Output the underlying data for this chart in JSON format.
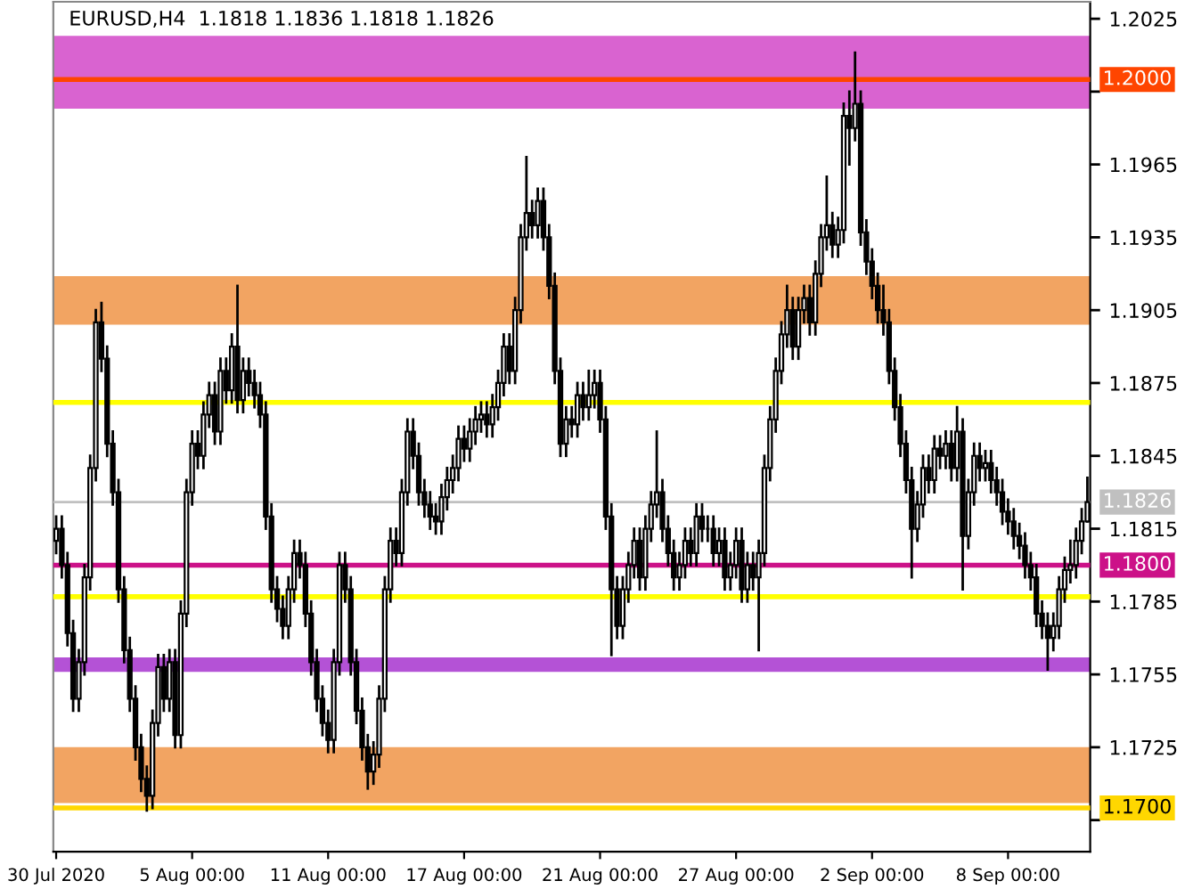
{
  "chart_data": {
    "type": "candlestick",
    "title": "EURUSD,H4  1.1818 1.1836 1.1818 1.1826",
    "categories": [
      "30 Jul 2020",
      null,
      null,
      null,
      null,
      null,
      null,
      null,
      null,
      null,
      null,
      null,
      null,
      null,
      null,
      null,
      null,
      null,
      null,
      null,
      null,
      null,
      null,
      null,
      "5 Aug 00:00",
      null,
      null,
      null,
      null,
      null,
      null,
      null,
      null,
      null,
      null,
      null,
      null,
      null,
      null,
      null,
      null,
      null,
      null,
      null,
      null,
      null,
      null,
      null,
      "11 Aug 00:00",
      null,
      null,
      null,
      null,
      null,
      null,
      null,
      null,
      null,
      null,
      null,
      null,
      null,
      null,
      null,
      null,
      null,
      null,
      null,
      null,
      null,
      null,
      null,
      "17 Aug 00:00",
      null,
      null,
      null,
      null,
      null,
      null,
      null,
      null,
      null,
      null,
      null,
      null,
      null,
      null,
      null,
      null,
      null,
      null,
      null,
      null,
      null,
      null,
      null,
      "21 Aug 00:00",
      null,
      null,
      null,
      null,
      null,
      null,
      null,
      null,
      null,
      null,
      null,
      null,
      null,
      null,
      null,
      null,
      null,
      null,
      null,
      null,
      null,
      null,
      null,
      "27 Aug 00:00",
      null,
      null,
      null,
      null,
      null,
      null,
      null,
      null,
      null,
      null,
      null,
      null,
      null,
      null,
      null,
      null,
      null,
      null,
      null,
      null,
      null,
      null,
      null,
      "2 Sep 00:00",
      null,
      null,
      null,
      null,
      null,
      null,
      null,
      null,
      null,
      null,
      null,
      null,
      null,
      null,
      null,
      null,
      null,
      null,
      null,
      null,
      null,
      null,
      null,
      "8 Sep 00:00",
      null,
      null,
      null,
      null,
      null,
      null,
      null,
      null,
      null,
      null,
      null,
      null,
      null,
      null
    ],
    "ohlc": [
      [
        1.181,
        1.182,
        1.1805,
        1.1815
      ],
      [
        1.1815,
        1.182,
        1.1795,
        1.18
      ],
      [
        1.18,
        1.1805,
        1.1767,
        1.1772
      ],
      [
        1.1772,
        1.1777,
        1.174,
        1.1745
      ],
      [
        1.1745,
        1.1765,
        1.174,
        1.176
      ],
      [
        1.176,
        1.18,
        1.1755,
        1.1795
      ],
      [
        1.1795,
        1.1845,
        1.179,
        1.184
      ],
      [
        1.184,
        1.1905,
        1.1835,
        1.19
      ],
      [
        1.19,
        1.1908,
        1.188,
        1.1885
      ],
      [
        1.1885,
        1.189,
        1.1845,
        1.185
      ],
      [
        1.185,
        1.1855,
        1.1825,
        1.183
      ],
      [
        1.183,
        1.1835,
        1.1785,
        1.179
      ],
      [
        1.179,
        1.1795,
        1.176,
        1.1765
      ],
      [
        1.1765,
        1.177,
        1.174,
        1.1745
      ],
      [
        1.1745,
        1.175,
        1.172,
        1.1725
      ],
      [
        1.1725,
        1.173,
        1.1707,
        1.1712
      ],
      [
        1.1712,
        1.1717,
        1.1699,
        1.1705
      ],
      [
        1.1705,
        1.174,
        1.17,
        1.1735
      ],
      [
        1.1735,
        1.1763,
        1.173,
        1.1758
      ],
      [
        1.1758,
        1.1763,
        1.174,
        1.1745
      ],
      [
        1.1745,
        1.1765,
        1.174,
        1.176
      ],
      [
        1.176,
        1.1765,
        1.1725,
        1.173
      ],
      [
        1.173,
        1.1785,
        1.1725,
        1.178
      ],
      [
        1.178,
        1.1835,
        1.1775,
        1.183
      ],
      [
        1.183,
        1.1855,
        1.1825,
        1.185
      ],
      [
        1.185,
        1.1855,
        1.184,
        1.1845
      ],
      [
        1.1845,
        1.1867,
        1.184,
        1.1862
      ],
      [
        1.1862,
        1.1875,
        1.1857,
        1.187
      ],
      [
        1.187,
        1.1875,
        1.185,
        1.1855
      ],
      [
        1.1855,
        1.1885,
        1.185,
        1.188
      ],
      [
        1.188,
        1.1885,
        1.1867,
        1.1872
      ],
      [
        1.1872,
        1.1895,
        1.1867,
        1.189
      ],
      [
        1.189,
        1.1915,
        1.1863,
        1.1868
      ],
      [
        1.1868,
        1.1885,
        1.1863,
        1.188
      ],
      [
        1.188,
        1.1885,
        1.187,
        1.1875
      ],
      [
        1.1875,
        1.188,
        1.1865,
        1.187
      ],
      [
        1.187,
        1.1875,
        1.1857,
        1.1862
      ],
      [
        1.1862,
        1.1867,
        1.1815,
        1.182
      ],
      [
        1.182,
        1.1825,
        1.1785,
        1.179
      ],
      [
        1.179,
        1.1795,
        1.1777,
        1.1782
      ],
      [
        1.1782,
        1.1787,
        1.177,
        1.1775
      ],
      [
        1.1775,
        1.1795,
        1.177,
        1.179
      ],
      [
        1.179,
        1.181,
        1.1785,
        1.1805
      ],
      [
        1.1805,
        1.181,
        1.1795,
        1.18
      ],
      [
        1.18,
        1.1805,
        1.1775,
        1.178
      ],
      [
        1.178,
        1.1785,
        1.1755,
        1.176
      ],
      [
        1.176,
        1.1765,
        1.174,
        1.1745
      ],
      [
        1.1745,
        1.175,
        1.173,
        1.1735
      ],
      [
        1.1735,
        1.174,
        1.1723,
        1.1728
      ],
      [
        1.1728,
        1.1765,
        1.1723,
        1.176
      ],
      [
        1.176,
        1.1805,
        1.1755,
        1.18
      ],
      [
        1.18,
        1.1805,
        1.1785,
        1.179
      ],
      [
        1.179,
        1.1795,
        1.1755,
        1.176
      ],
      [
        1.176,
        1.1765,
        1.1735,
        1.174
      ],
      [
        1.174,
        1.1745,
        1.172,
        1.1725
      ],
      [
        1.1725,
        1.173,
        1.1708,
        1.1715
      ],
      [
        1.1715,
        1.1727,
        1.171,
        1.1722
      ],
      [
        1.1722,
        1.175,
        1.1717,
        1.1745
      ],
      [
        1.1745,
        1.1795,
        1.174,
        1.179
      ],
      [
        1.179,
        1.1815,
        1.1785,
        1.181
      ],
      [
        1.181,
        1.1815,
        1.18,
        1.1805
      ],
      [
        1.1805,
        1.1835,
        1.18,
        1.183
      ],
      [
        1.183,
        1.186,
        1.1825,
        1.1855
      ],
      [
        1.1855,
        1.186,
        1.184,
        1.1845
      ],
      [
        1.1845,
        1.185,
        1.1825,
        1.183
      ],
      [
        1.183,
        1.1835,
        1.182,
        1.1825
      ],
      [
        1.1825,
        1.183,
        1.1815,
        1.182
      ],
      [
        1.182,
        1.1825,
        1.1813,
        1.1818
      ],
      [
        1.1818,
        1.1833,
        1.1813,
        1.1828
      ],
      [
        1.1828,
        1.184,
        1.1823,
        1.1835
      ],
      [
        1.1835,
        1.1845,
        1.183,
        1.184
      ],
      [
        1.184,
        1.1857,
        1.1835,
        1.1852
      ],
      [
        1.1852,
        1.1857,
        1.1843,
        1.1848
      ],
      [
        1.1848,
        1.186,
        1.1843,
        1.1855
      ],
      [
        1.1855,
        1.1865,
        1.185,
        1.186
      ],
      [
        1.186,
        1.1867,
        1.1855,
        1.1862
      ],
      [
        1.1862,
        1.1867,
        1.1853,
        1.1858
      ],
      [
        1.1858,
        1.187,
        1.1853,
        1.1865
      ],
      [
        1.1865,
        1.188,
        1.186,
        1.1875
      ],
      [
        1.1875,
        1.1895,
        1.187,
        1.189
      ],
      [
        1.189,
        1.1895,
        1.1875,
        1.188
      ],
      [
        1.188,
        1.191,
        1.1875,
        1.1905
      ],
      [
        1.1905,
        1.194,
        1.19,
        1.1935
      ],
      [
        1.1935,
        1.1968,
        1.193,
        1.1945
      ],
      [
        1.1945,
        1.195,
        1.1935,
        1.194
      ],
      [
        1.194,
        1.1955,
        1.1935,
        1.195
      ],
      [
        1.195,
        1.1955,
        1.193,
        1.1935
      ],
      [
        1.1935,
        1.194,
        1.191,
        1.1915
      ],
      [
        1.1915,
        1.192,
        1.1875,
        1.188
      ],
      [
        1.188,
        1.1885,
        1.1845,
        1.185
      ],
      [
        1.185,
        1.1865,
        1.1845,
        1.186
      ],
      [
        1.186,
        1.1865,
        1.1853,
        1.1858
      ],
      [
        1.1858,
        1.1875,
        1.1853,
        1.187
      ],
      [
        1.187,
        1.1875,
        1.186,
        1.1865
      ],
      [
        1.1865,
        1.188,
        1.186,
        1.187
      ],
      [
        1.187,
        1.188,
        1.1865,
        1.1875
      ],
      [
        1.1875,
        1.188,
        1.1855,
        1.186
      ],
      [
        1.186,
        1.1865,
        1.1815,
        1.182
      ],
      [
        1.182,
        1.1825,
        1.1763,
        1.179
      ],
      [
        1.179,
        1.1795,
        1.177,
        1.1775
      ],
      [
        1.1775,
        1.1795,
        1.177,
        1.179
      ],
      [
        1.179,
        1.1805,
        1.1785,
        1.18
      ],
      [
        1.18,
        1.1815,
        1.1795,
        1.181
      ],
      [
        1.181,
        1.1815,
        1.179,
        1.1795
      ],
      [
        1.1795,
        1.182,
        1.179,
        1.1815
      ],
      [
        1.1815,
        1.183,
        1.181,
        1.1825
      ],
      [
        1.1825,
        1.1855,
        1.182,
        1.183
      ],
      [
        1.183,
        1.1835,
        1.181,
        1.1815
      ],
      [
        1.1815,
        1.182,
        1.18,
        1.1805
      ],
      [
        1.1805,
        1.181,
        1.179,
        1.1795
      ],
      [
        1.1795,
        1.1805,
        1.179,
        1.18
      ],
      [
        1.18,
        1.1815,
        1.1795,
        1.181
      ],
      [
        1.181,
        1.1815,
        1.18,
        1.1805
      ],
      [
        1.1805,
        1.1825,
        1.18,
        1.182
      ],
      [
        1.182,
        1.1825,
        1.181,
        1.1815
      ],
      [
        1.1815,
        1.182,
        1.181,
        1.1815
      ],
      [
        1.1815,
        1.182,
        1.18,
        1.1805
      ],
      [
        1.1805,
        1.1815,
        1.18,
        1.181
      ],
      [
        1.181,
        1.1815,
        1.179,
        1.1795
      ],
      [
        1.1795,
        1.1805,
        1.179,
        1.18
      ],
      [
        1.18,
        1.1815,
        1.1795,
        1.181
      ],
      [
        1.181,
        1.1815,
        1.1785,
        1.179
      ],
      [
        1.179,
        1.1805,
        1.1785,
        1.18
      ],
      [
        1.18,
        1.1805,
        1.179,
        1.1795
      ],
      [
        1.1795,
        1.181,
        1.1765,
        1.1805
      ],
      [
        1.1805,
        1.1845,
        1.18,
        1.184
      ],
      [
        1.184,
        1.1865,
        1.1835,
        1.186
      ],
      [
        1.186,
        1.1885,
        1.1855,
        1.188
      ],
      [
        1.188,
        1.19,
        1.1875,
        1.1895
      ],
      [
        1.1895,
        1.1915,
        1.189,
        1.1905
      ],
      [
        1.1905,
        1.191,
        1.1885,
        1.189
      ],
      [
        1.189,
        1.191,
        1.1885,
        1.1905
      ],
      [
        1.1905,
        1.1915,
        1.19,
        1.191
      ],
      [
        1.191,
        1.1915,
        1.1895,
        1.19
      ],
      [
        1.19,
        1.1925,
        1.1895,
        1.192
      ],
      [
        1.192,
        1.194,
        1.1915,
        1.1935
      ],
      [
        1.1935,
        1.196,
        1.193,
        1.194
      ],
      [
        1.194,
        1.1945,
        1.1927,
        1.1932
      ],
      [
        1.1932,
        1.1943,
        1.1927,
        1.1938
      ],
      [
        1.1938,
        1.199,
        1.1933,
        1.1985
      ],
      [
        1.1985,
        1.1995,
        1.1965,
        1.198
      ],
      [
        1.198,
        1.2011,
        1.1975,
        1.199
      ],
      [
        1.199,
        1.1995,
        1.1932,
        1.1937
      ],
      [
        1.1937,
        1.1942,
        1.192,
        1.1925
      ],
      [
        1.1925,
        1.193,
        1.191,
        1.1915
      ],
      [
        1.1915,
        1.192,
        1.19,
        1.1905
      ],
      [
        1.1905,
        1.1915,
        1.1895,
        1.19
      ],
      [
        1.19,
        1.1905,
        1.1875,
        1.188
      ],
      [
        1.188,
        1.1885,
        1.186,
        1.1865
      ],
      [
        1.1865,
        1.187,
        1.1845,
        1.185
      ],
      [
        1.185,
        1.1855,
        1.183,
        1.1835
      ],
      [
        1.1835,
        1.184,
        1.1795,
        1.1815
      ],
      [
        1.1815,
        1.183,
        1.181,
        1.1825
      ],
      [
        1.1825,
        1.1845,
        1.182,
        1.184
      ],
      [
        1.184,
        1.1845,
        1.183,
        1.1835
      ],
      [
        1.1835,
        1.1853,
        1.183,
        1.1848
      ],
      [
        1.1848,
        1.1853,
        1.184,
        1.1845
      ],
      [
        1.1845,
        1.1855,
        1.184,
        1.185
      ],
      [
        1.185,
        1.1855,
        1.1835,
        1.184
      ],
      [
        1.184,
        1.1865,
        1.1835,
        1.1855
      ],
      [
        1.1855,
        1.186,
        1.179,
        1.1812
      ],
      [
        1.1812,
        1.1835,
        1.1807,
        1.183
      ],
      [
        1.183,
        1.185,
        1.1825,
        1.1845
      ],
      [
        1.1845,
        1.185,
        1.1835,
        1.184
      ],
      [
        1.184,
        1.1847,
        1.1835,
        1.1842
      ],
      [
        1.1842,
        1.1847,
        1.183,
        1.1835
      ],
      [
        1.1835,
        1.184,
        1.1825,
        1.183
      ],
      [
        1.183,
        1.1835,
        1.1817,
        1.1822
      ],
      [
        1.1822,
        1.1827,
        1.1813,
        1.1818
      ],
      [
        1.1818,
        1.1823,
        1.1807,
        1.1812
      ],
      [
        1.1812,
        1.1817,
        1.1803,
        1.1808
      ],
      [
        1.1808,
        1.1813,
        1.1795,
        1.18
      ],
      [
        1.18,
        1.1805,
        1.179,
        1.1795
      ],
      [
        1.1795,
        1.18,
        1.1775,
        1.178
      ],
      [
        1.178,
        1.1785,
        1.177,
        1.1775
      ],
      [
        1.1775,
        1.178,
        1.1757,
        1.177
      ],
      [
        1.177,
        1.178,
        1.1765,
        1.1775
      ],
      [
        1.1775,
        1.1795,
        1.177,
        1.179
      ],
      [
        1.179,
        1.1803,
        1.1785,
        1.1798
      ],
      [
        1.1798,
        1.181,
        1.1793,
        1.18
      ],
      [
        1.18,
        1.1815,
        1.1795,
        1.181
      ],
      [
        1.181,
        1.1823,
        1.1805,
        1.1818
      ],
      [
        1.1818,
        1.1836,
        1.1818,
        1.1826
      ]
    ],
    "ylim": [
      1.1682,
      1.2032
    ],
    "yticks": [
      1.2025,
      {
        "value": 1.1995,
        "label": null
      },
      1.1965,
      1.1935,
      1.1905,
      1.1875,
      1.1845,
      1.1815,
      1.1785,
      1.1755,
      1.1725,
      {
        "value": 1.1695,
        "label": null
      }
    ],
    "bands": [
      {
        "axis": "y",
        "from": 1.1899,
        "to": 1.1919,
        "color": "#f2a462"
      },
      {
        "axis": "y",
        "from": 1.1702,
        "to": 1.1725,
        "color": "#f2a462"
      },
      {
        "axis": "y",
        "from": 1.1756,
        "to": 1.1762,
        "color": "#b452d6"
      },
      {
        "axis": "y",
        "from": 1.1988,
        "to": 1.2018,
        "color": "#d963d0"
      }
    ],
    "ref_lines": [
      {
        "axis": "y",
        "value": 1.2,
        "label": "1.2000",
        "color": "#ff4500"
      },
      {
        "axis": "y",
        "value": 1.1826,
        "label": "1.1826",
        "color": "#c0c0c0"
      },
      {
        "axis": "y",
        "value": 1.18,
        "label": "1.1800",
        "color": "#cc1188"
      },
      {
        "axis": "y",
        "value": 1.17,
        "label": "1.1700",
        "color": "#ffd700"
      },
      {
        "axis": "y",
        "value": 1.1867,
        "color": "#ffff00"
      },
      {
        "axis": "y",
        "value": 1.1787,
        "color": "#ffff00"
      }
    ],
    "grid": false,
    "legend": false
  }
}
